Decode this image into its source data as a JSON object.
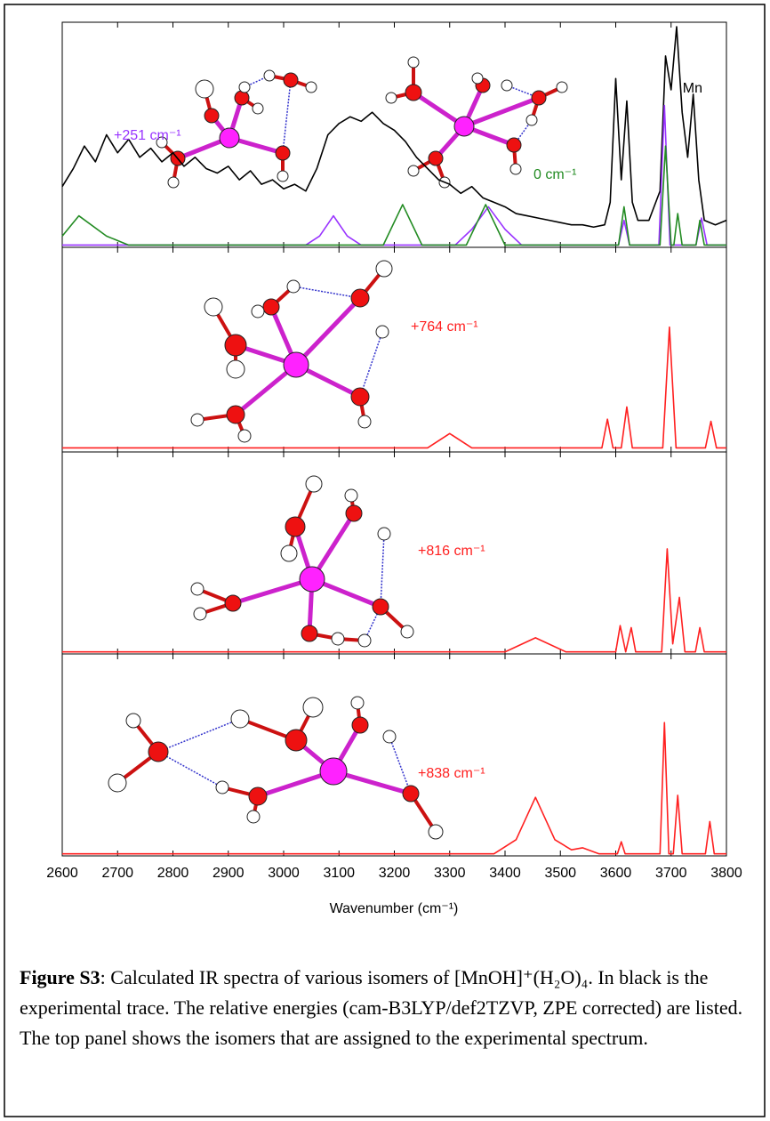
{
  "chart_data": [
    {
      "type": "line",
      "xlim": [
        2600,
        3800
      ],
      "ylim": [
        0,
        100
      ],
      "annotations": [
        {
          "text": "Mn",
          "color": "#000000"
        },
        {
          "text": "+251 cm⁻¹",
          "color": "#9933ff"
        },
        {
          "text": "0 cm⁻¹",
          "color": "#228b22"
        }
      ],
      "series": [
        {
          "color": "#000000",
          "x": [
            2600,
            2620,
            2640,
            2660,
            2680,
            2700,
            2720,
            2740,
            2760,
            2780,
            2800,
            2820,
            2840,
            2860,
            2880,
            2900,
            2920,
            2940,
            2960,
            2980,
            3000,
            3020,
            3040,
            3060,
            3080,
            3100,
            3120,
            3140,
            3160,
            3180,
            3200,
            3220,
            3240,
            3260,
            3280,
            3300,
            3320,
            3340,
            3360,
            3380,
            3400,
            3420,
            3440,
            3460,
            3480,
            3500,
            3520,
            3540,
            3560,
            3580,
            3590,
            3600,
            3610,
            3620,
            3630,
            3640,
            3660,
            3680,
            3690,
            3700,
            3710,
            3720,
            3730,
            3740,
            3750,
            3760,
            3780,
            3800
          ],
          "values": [
            27,
            35,
            45,
            38,
            50,
            42,
            48,
            40,
            44,
            38,
            42,
            36,
            40,
            35,
            33,
            36,
            30,
            34,
            28,
            30,
            26,
            28,
            25,
            35,
            50,
            55,
            58,
            56,
            60,
            55,
            52,
            47,
            40,
            35,
            30,
            28,
            24,
            27,
            22,
            20,
            18,
            15,
            14,
            13,
            12,
            11,
            10,
            10,
            9,
            10,
            20,
            75,
            30,
            65,
            20,
            12,
            12,
            25,
            85,
            70,
            98,
            60,
            40,
            68,
            30,
            12,
            10,
            12
          ]
        },
        {
          "color": "#9933ff",
          "x": [
            2600,
            3040,
            3065,
            3090,
            3115,
            3140,
            3310,
            3340,
            3370,
            3400,
            3430,
            3605,
            3615,
            3625,
            3678,
            3688,
            3698,
            3745,
            3755,
            3765,
            3800
          ],
          "values": [
            1,
            1,
            5,
            14,
            5,
            1,
            1,
            8,
            18,
            8,
            1,
            1,
            12,
            1,
            1,
            63,
            1,
            1,
            13,
            1,
            1
          ]
        },
        {
          "color": "#228b22",
          "x": [
            2600,
            2630,
            2680,
            2720,
            3180,
            3215,
            3250,
            3330,
            3365,
            3400,
            3605,
            3615,
            3625,
            3680,
            3690,
            3700,
            3705,
            3712,
            3720,
            3745,
            3752,
            3760,
            3800
          ],
          "values": [
            5,
            14,
            5,
            1,
            1,
            19,
            1,
            1,
            19,
            1,
            1,
            18,
            1,
            1,
            45,
            1,
            1,
            15,
            1,
            1,
            12,
            1,
            1
          ]
        }
      ]
    },
    {
      "type": "line",
      "xlim": [
        2600,
        3800
      ],
      "ylim": [
        0,
        100
      ],
      "annotations": [
        {
          "text": "+764 cm⁻¹",
          "color": "#ff2020"
        }
      ],
      "series": [
        {
          "color": "#ff2020",
          "x": [
            2600,
            3260,
            3300,
            3340,
            3575,
            3585,
            3595,
            3610,
            3620,
            3630,
            3685,
            3697,
            3709,
            3762,
            3772,
            3782,
            3800
          ],
          "values": [
            2,
            2,
            9,
            2,
            2,
            16,
            2,
            2,
            22,
            2,
            2,
            61,
            2,
            2,
            15,
            2,
            2
          ]
        }
      ]
    },
    {
      "type": "line",
      "xlim": [
        2600,
        3800
      ],
      "ylim": [
        0,
        100
      ],
      "annotations": [
        {
          "text": "+816 cm⁻¹",
          "color": "#ff2020"
        }
      ],
      "series": [
        {
          "color": "#ff2020",
          "x": [
            2600,
            3400,
            3455,
            3510,
            3600,
            3608,
            3618,
            3628,
            3636,
            3683,
            3693,
            3703,
            3715,
            3725,
            3744,
            3752,
            3760,
            3800
          ],
          "values": [
            1,
            1,
            8,
            1,
            1,
            14,
            1,
            13,
            1,
            1,
            52,
            5,
            28,
            1,
            1,
            13,
            1,
            1
          ]
        }
      ]
    },
    {
      "type": "line",
      "xlim": [
        2600,
        3800
      ],
      "ylim": [
        0,
        100
      ],
      "annotations": [
        {
          "text": "+838 cm⁻¹",
          "color": "#ff2020"
        }
      ],
      "series": [
        {
          "color": "#ff2020",
          "x": [
            2600,
            3380,
            3420,
            3455,
            3490,
            3520,
            3540,
            3570,
            3603,
            3610,
            3617,
            3680,
            3688,
            3696,
            3704,
            3712,
            3720,
            3762,
            3770,
            3778,
            3800
          ],
          "values": [
            1,
            1,
            8,
            29,
            8,
            3,
            4,
            1,
            1,
            7,
            1,
            1,
            66,
            1,
            1,
            30,
            1,
            1,
            17,
            1,
            1
          ]
        }
      ]
    }
  ],
  "x_axis": {
    "label": "Wavenumber (cm⁻¹)",
    "xlim": [
      2600,
      3800
    ],
    "xticks": [
      2600,
      2700,
      2800,
      2900,
      3000,
      3100,
      3200,
      3300,
      3400,
      3500,
      3600,
      3700,
      3800
    ]
  },
  "caption": {
    "label": "Figure S3",
    "text": ": Calculated IR spectra of various isomers of [MnOH]⁺(H₂O)₄.  In black is the experimental trace.  The relative energies (cam-B3LYP/def2TZVP, ZPE corrected) are listed.  The top panel shows the isomers that are assigned to the experimental spectrum."
  }
}
